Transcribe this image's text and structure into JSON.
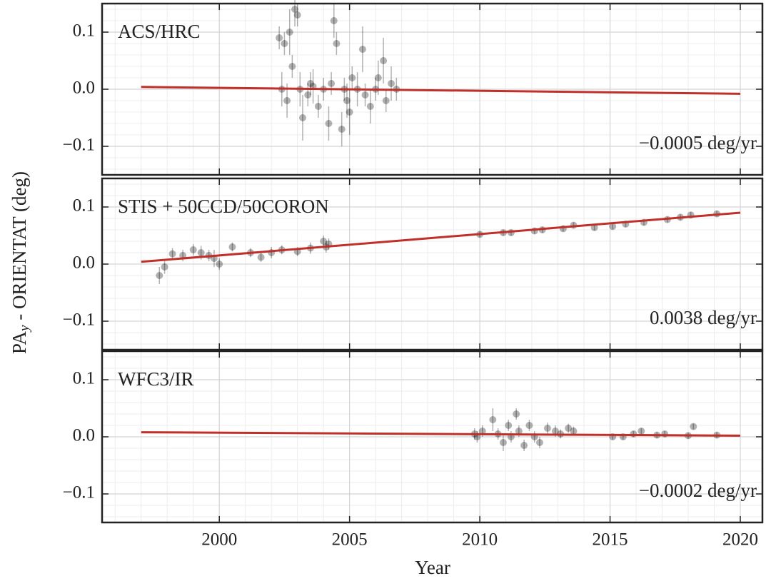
{
  "ylabel": [
    "PA",
    "y",
    " - ORIENTAT (deg)"
  ],
  "xlabel": "Year",
  "chart_data": [
    {
      "type": "scatter",
      "title": "ACS/HRC",
      "annotation": "−0.0005 deg/yr",
      "color": "#000000",
      "x": [
        2002.3,
        2002.4,
        2002.5,
        2002.6,
        2002.7,
        2002.8,
        2002.9,
        2003.0,
        2003.1,
        2003.2,
        2003.4,
        2003.5,
        2003.6,
        2003.8,
        2004.0,
        2004.2,
        2004.3,
        2004.4,
        2004.5,
        2004.7,
        2004.8,
        2004.9,
        2005.0,
        2005.1,
        2005.3,
        2005.5,
        2005.6,
        2005.8,
        2006.0,
        2006.1,
        2006.3,
        2006.4,
        2006.6,
        2006.8
      ],
      "values": [
        0.09,
        0.0,
        0.08,
        -0.02,
        0.1,
        0.04,
        0.14,
        0.13,
        0.0,
        -0.05,
        -0.01,
        0.01,
        0.005,
        -0.03,
        0.0,
        -0.06,
        0.01,
        0.12,
        0.08,
        -0.07,
        0.0,
        -0.02,
        -0.04,
        0.02,
        0.0,
        0.07,
        -0.01,
        -0.03,
        0.0,
        0.02,
        0.05,
        -0.02,
        0.01,
        0.0
      ],
      "errors": [
        0.02,
        0.03,
        0.02,
        0.03,
        0.04,
        0.02,
        0.03,
        0.02,
        0.03,
        0.04,
        0.02,
        0.02,
        0.03,
        0.02,
        0.02,
        0.03,
        0.02,
        0.03,
        0.02,
        0.03,
        0.02,
        0.03,
        0.04,
        0.02,
        0.03,
        0.04,
        0.02,
        0.03,
        0.02,
        0.03,
        0.04,
        0.02,
        0.03,
        0.02
      ],
      "fit": {
        "x": [
          1997,
          2020
        ],
        "values": [
          0.004,
          -0.008
        ],
        "color": "#c0302b"
      },
      "xlim": [
        1995.5,
        2020.85
      ],
      "ylim": [
        -0.15,
        0.15
      ],
      "xticks": [
        2000,
        2005,
        2010,
        2015,
        2020
      ],
      "yticks": [
        {
          "value": -0.1,
          "label": "−0.1"
        },
        {
          "value": 0,
          "label": "0.0"
        },
        0.1
      ],
      "grid": true
    },
    {
      "type": "scatter",
      "title": "STIS + 50CCD/50CORON",
      "annotation": "0.0038 deg/yr",
      "color": "#000000",
      "x": [
        1997.7,
        1997.9,
        1998.2,
        1998.6,
        1999.0,
        1999.3,
        1999.6,
        1999.8,
        2000.0,
        2000.5,
        2001.2,
        2001.6,
        2002.0,
        2002.4,
        2003.0,
        2003.5,
        2004.0,
        2004.1,
        2004.2,
        2010.0,
        2010.9,
        2011.2,
        2012.1,
        2012.4,
        2013.2,
        2013.6,
        2014.4,
        2015.1,
        2015.6,
        2016.3,
        2017.2,
        2017.7,
        2018.1,
        2019.1
      ],
      "values": [
        -0.02,
        -0.005,
        0.018,
        0.015,
        0.025,
        0.02,
        0.015,
        0.01,
        0.0,
        0.03,
        0.02,
        0.012,
        0.02,
        0.025,
        0.022,
        0.028,
        0.04,
        0.03,
        0.035,
        0.052,
        0.055,
        0.055,
        0.058,
        0.06,
        0.062,
        0.068,
        0.064,
        0.066,
        0.07,
        0.073,
        0.078,
        0.082,
        0.086,
        0.088
      ],
      "errors": [
        0.015,
        0.012,
        0.01,
        0.01,
        0.01,
        0.012,
        0.01,
        0.015,
        0.01,
        0.008,
        0.008,
        0.008,
        0.01,
        0.008,
        0.008,
        0.01,
        0.01,
        0.01,
        0.01,
        0.005,
        0.005,
        0.005,
        0.005,
        0.005,
        0.005,
        0.005,
        0.005,
        0.005,
        0.005,
        0.005,
        0.005,
        0.005,
        0.005,
        0.005
      ],
      "fit": {
        "x": [
          1997,
          2020
        ],
        "values": [
          0.004,
          0.09
        ],
        "color": "#c0302b"
      },
      "xlim": [
        1995.5,
        2020.85
      ],
      "ylim": [
        -0.15,
        0.15
      ],
      "xticks": [
        2000,
        2005,
        2010,
        2015,
        2020
      ],
      "yticks": [
        {
          "value": -0.1,
          "label": "−0.1"
        },
        {
          "value": 0,
          "label": "0.0"
        },
        0.1
      ],
      "grid": true
    },
    {
      "type": "scatter",
      "title": "WFC3/IR",
      "annotation": "−0.0002 deg/yr",
      "color": "#000000",
      "x": [
        2009.8,
        2009.9,
        2010.1,
        2010.5,
        2010.7,
        2010.9,
        2011.1,
        2011.2,
        2011.4,
        2011.5,
        2011.7,
        2011.9,
        2012.1,
        2012.3,
        2012.6,
        2012.9,
        2013.1,
        2013.4,
        2013.6,
        2015.1,
        2015.5,
        2015.9,
        2016.2,
        2016.8,
        2017.1,
        2018.0,
        2018.2,
        2019.1
      ],
      "values": [
        0.005,
        0.0,
        0.01,
        0.03,
        0.005,
        -0.01,
        0.02,
        0.0,
        0.04,
        0.01,
        -0.015,
        0.02,
        0.0,
        -0.01,
        0.015,
        0.01,
        0.005,
        0.015,
        0.01,
        0.0,
        0.0,
        0.005,
        0.01,
        0.003,
        0.005,
        0.002,
        0.018,
        0.003
      ],
      "errors": [
        0.01,
        0.01,
        0.01,
        0.02,
        0.01,
        0.015,
        0.01,
        0.01,
        0.01,
        0.01,
        0.01,
        0.01,
        0.01,
        0.01,
        0.01,
        0.01,
        0.008,
        0.008,
        0.008,
        0.005,
        0.005,
        0.005,
        0.005,
        0.005,
        0.005,
        0.005,
        0.005,
        0.005
      ],
      "fit": {
        "x": [
          1997,
          2020
        ],
        "values": [
          0.008,
          0.002
        ],
        "color": "#c0302b"
      },
      "xlim": [
        1995.5,
        2020.85
      ],
      "ylim": [
        -0.15,
        0.15
      ],
      "xticks": [
        2000,
        2005,
        2010,
        2015,
        2020
      ],
      "yticks": [
        {
          "value": -0.1,
          "label": "−0.1"
        },
        {
          "value": 0,
          "label": "0.0"
        },
        0.1
      ],
      "grid": true
    }
  ]
}
